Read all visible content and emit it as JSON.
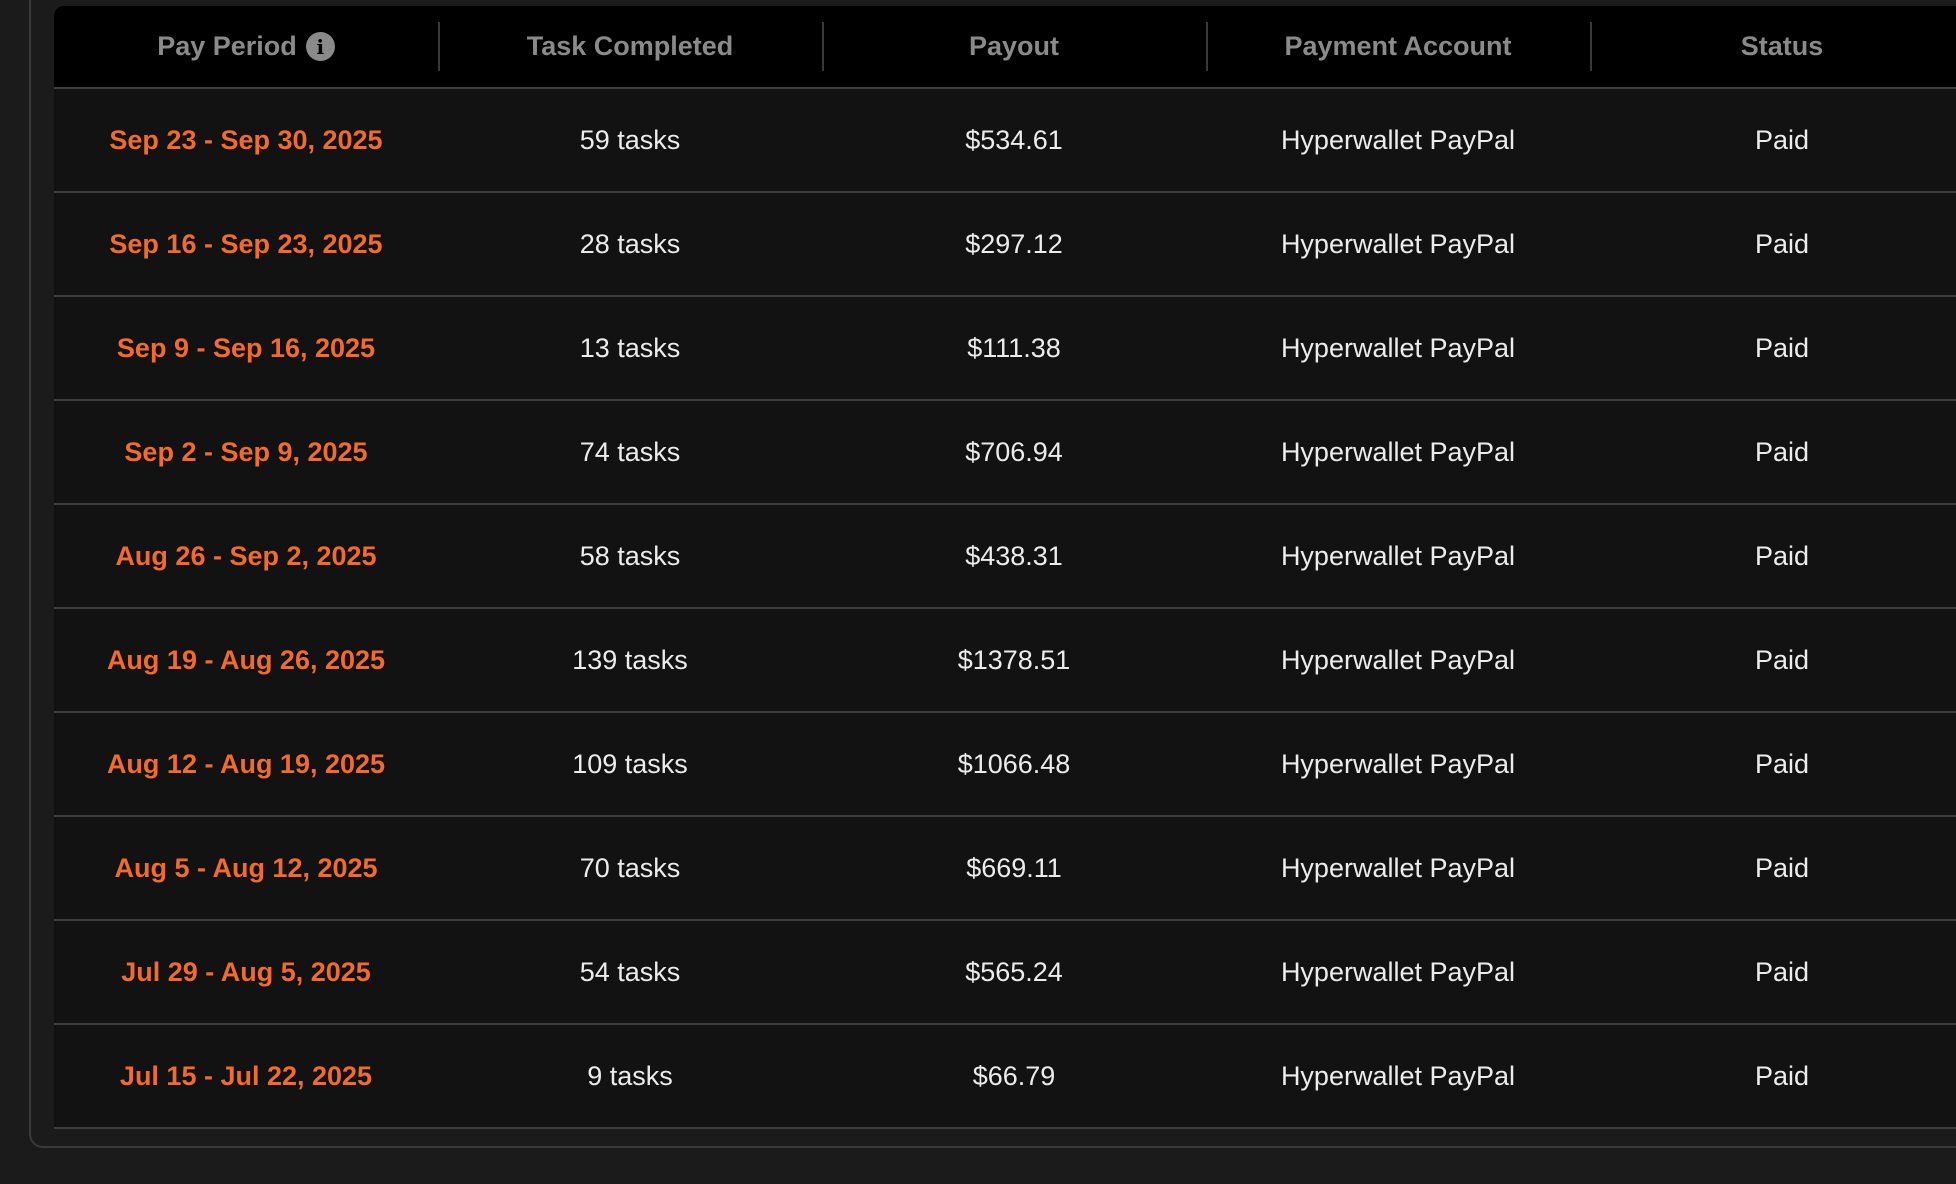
{
  "table": {
    "headers": {
      "pay_period": "Pay Period",
      "tasks": "Task Completed",
      "payout": "Payout",
      "account": "Payment Account",
      "status": "Status"
    },
    "info_icon": "i",
    "accent_color": "#f26a2e",
    "rows": [
      {
        "period": "Sep 23 - Sep 30, 2025",
        "tasks": "59 tasks",
        "payout": "$534.61",
        "account": "Hyperwallet PayPal",
        "status": "Paid"
      },
      {
        "period": "Sep 16 - Sep 23, 2025",
        "tasks": "28 tasks",
        "payout": "$297.12",
        "account": "Hyperwallet PayPal",
        "status": "Paid"
      },
      {
        "period": "Sep 9 - Sep 16, 2025",
        "tasks": "13 tasks",
        "payout": "$111.38",
        "account": "Hyperwallet PayPal",
        "status": "Paid"
      },
      {
        "period": "Sep 2 - Sep 9, 2025",
        "tasks": "74 tasks",
        "payout": "$706.94",
        "account": "Hyperwallet PayPal",
        "status": "Paid"
      },
      {
        "period": "Aug 26 - Sep 2, 2025",
        "tasks": "58 tasks",
        "payout": "$438.31",
        "account": "Hyperwallet PayPal",
        "status": "Paid"
      },
      {
        "period": "Aug 19 - Aug 26, 2025",
        "tasks": "139 tasks",
        "payout": "$1378.51",
        "account": "Hyperwallet PayPal",
        "status": "Paid"
      },
      {
        "period": "Aug 12 - Aug 19, 2025",
        "tasks": "109 tasks",
        "payout": "$1066.48",
        "account": "Hyperwallet PayPal",
        "status": "Paid"
      },
      {
        "period": "Aug 5 - Aug 12, 2025",
        "tasks": "70 tasks",
        "payout": "$669.11",
        "account": "Hyperwallet PayPal",
        "status": "Paid"
      },
      {
        "period": "Jul 29 - Aug 5, 2025",
        "tasks": "54 tasks",
        "payout": "$565.24",
        "account": "Hyperwallet PayPal",
        "status": "Paid"
      },
      {
        "period": "Jul 15 - Jul 22, 2025",
        "tasks": "9 tasks",
        "payout": "$66.79",
        "account": "Hyperwallet PayPal",
        "status": "Paid"
      }
    ]
  }
}
